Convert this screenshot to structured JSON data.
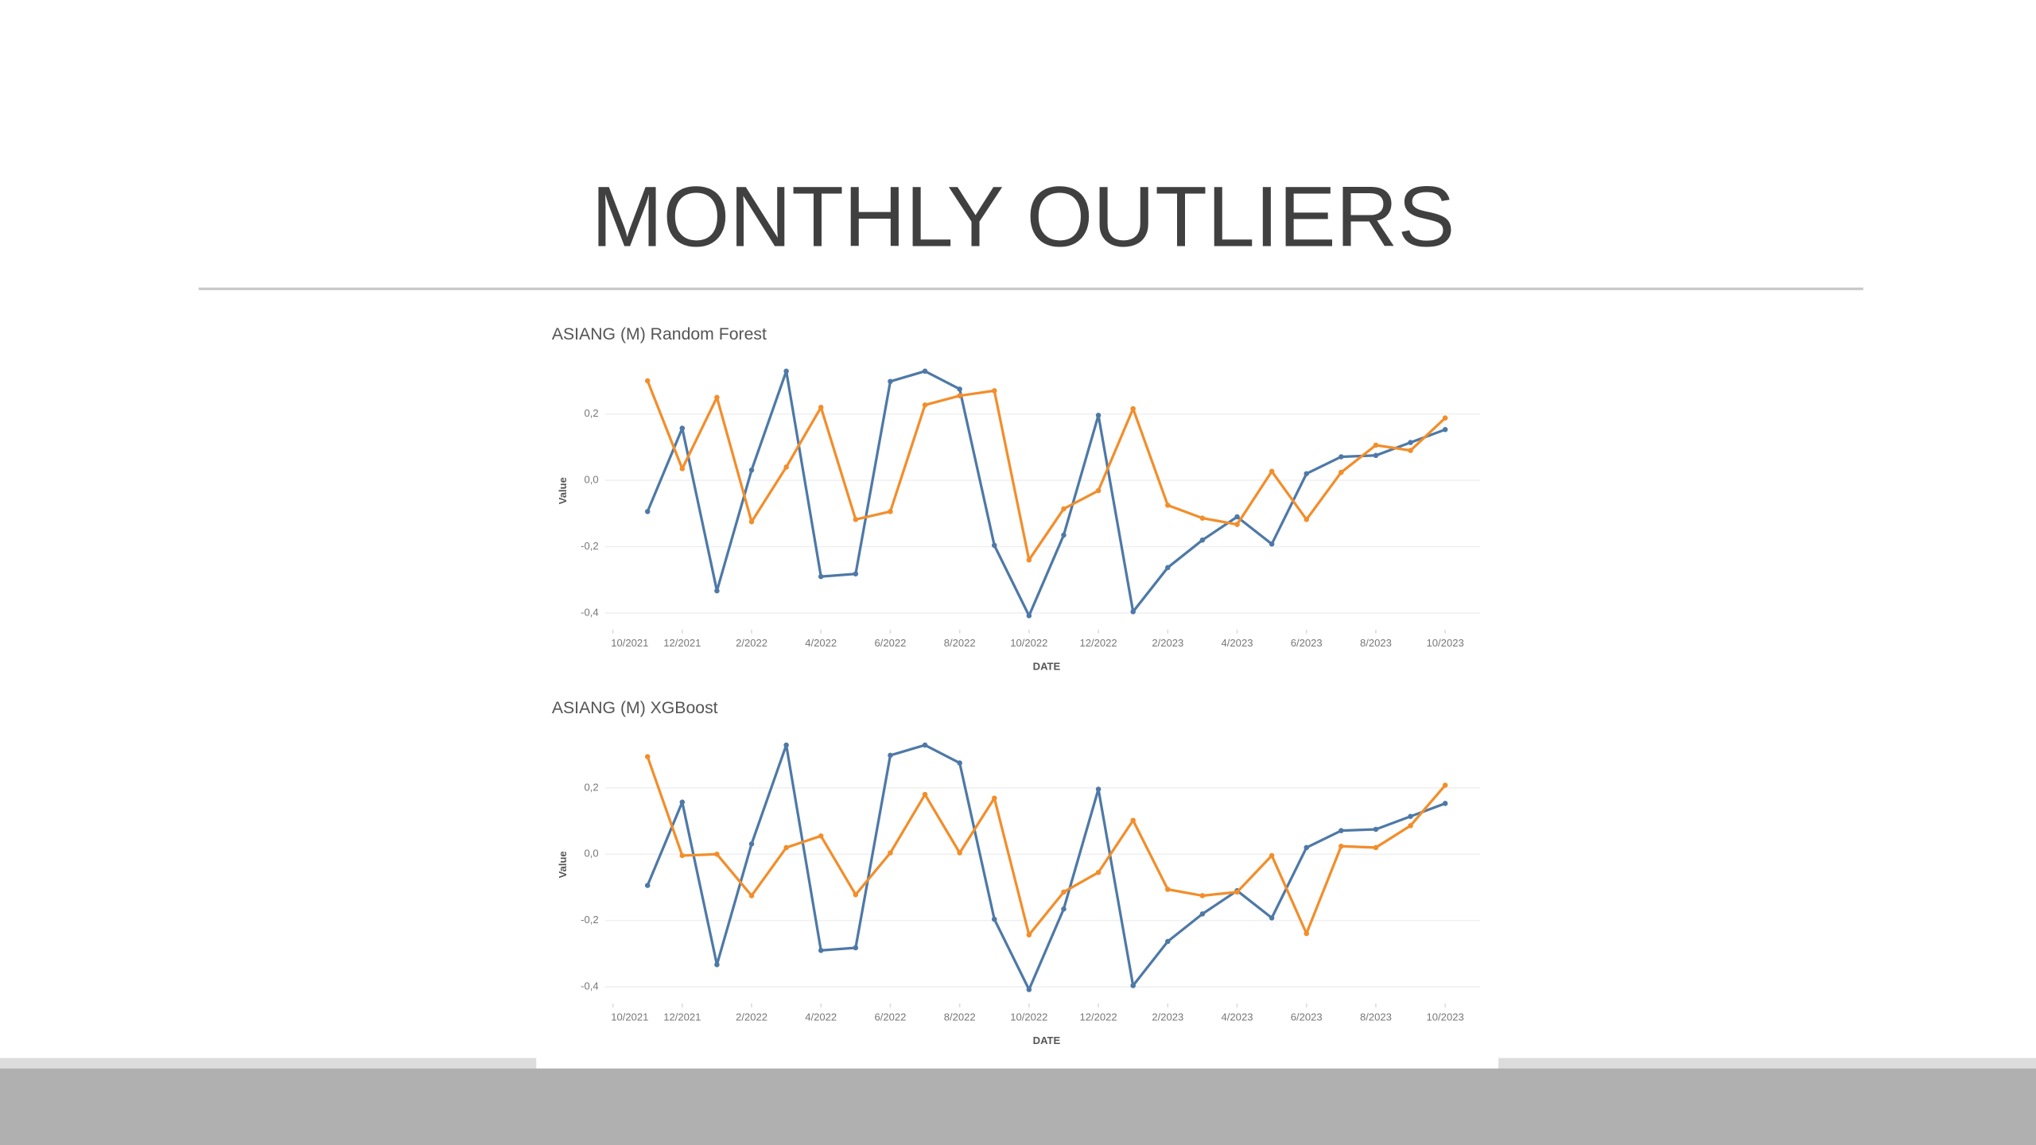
{
  "slide_title": "MONTHLY OUTLIERS",
  "chart_data": [
    {
      "type": "line",
      "title": "ASIANG (M) Random Forest",
      "x_label": "DATE",
      "y_label": "Value",
      "x": [
        "11/2021",
        "12/2021",
        "1/2022",
        "2/2022",
        "3/2022",
        "4/2022",
        "5/2022",
        "6/2022",
        "7/2022",
        "8/2022",
        "9/2022",
        "10/2022",
        "11/2022",
        "12/2022",
        "1/2023",
        "2/2023",
        "3/2023",
        "4/2023",
        "5/2023",
        "6/2023",
        "7/2023",
        "8/2023",
        "9/2023",
        "10/2023"
      ],
      "xlim": [
        "10/2021",
        "10/2023"
      ],
      "xticks": [
        "10/2021",
        "12/2021",
        "2/2022",
        "4/2022",
        "6/2022",
        "8/2022",
        "10/2022",
        "12/2022",
        "2/2023",
        "4/2023",
        "6/2023",
        "8/2023",
        "10/2023"
      ],
      "ylim": [
        -0.45,
        0.36
      ],
      "yticks": [
        {
          "value": -0.4,
          "label": "-0,4"
        },
        {
          "value": -0.2,
          "label": "-0,2"
        },
        {
          "value": 0,
          "label": "0,0"
        },
        {
          "value": 0.2,
          "label": "0,2"
        }
      ],
      "grid": true,
      "series": [
        {
          "color": "#4e79a7",
          "values": [
            -0.094,
            0.157,
            -0.333,
            0.031,
            0.329,
            -0.29,
            -0.282,
            0.298,
            0.329,
            0.275,
            -0.196,
            -0.408,
            -0.165,
            0.196,
            -0.396,
            -0.263,
            -0.18,
            -0.11,
            -0.192,
            0.02,
            0.071,
            0.075,
            0.114,
            0.153
          ]
        },
        {
          "color": "#f28e2b",
          "values": [
            0.3,
            0.035,
            0.25,
            -0.125,
            0.04,
            0.22,
            -0.118,
            -0.094,
            0.227,
            0.255,
            0.27,
            -0.24,
            -0.086,
            -0.031,
            0.216,
            -0.075,
            -0.114,
            -0.133,
            0.027,
            -0.118,
            0.024,
            0.106,
            0.09,
            0.188
          ]
        }
      ]
    },
    {
      "type": "line",
      "title": "ASIANG (M) XGBoost",
      "x_label": "DATE",
      "y_label": "Value",
      "x": [
        "11/2021",
        "12/2021",
        "1/2022",
        "2/2022",
        "3/2022",
        "4/2022",
        "5/2022",
        "6/2022",
        "7/2022",
        "8/2022",
        "9/2022",
        "10/2022",
        "11/2022",
        "12/2022",
        "1/2023",
        "2/2023",
        "3/2023",
        "4/2023",
        "5/2023",
        "6/2023",
        "7/2023",
        "8/2023",
        "9/2023",
        "10/2023"
      ],
      "xlim": [
        "10/2021",
        "10/2023"
      ],
      "xticks": [
        "10/2021",
        "12/2021",
        "2/2022",
        "4/2022",
        "6/2022",
        "8/2022",
        "10/2022",
        "12/2022",
        "2/2023",
        "4/2023",
        "6/2023",
        "8/2023",
        "10/2023"
      ],
      "ylim": [
        -0.45,
        0.36
      ],
      "yticks": [
        {
          "value": -0.4,
          "label": "-0,4"
        },
        {
          "value": -0.2,
          "label": "-0,2"
        },
        {
          "value": 0,
          "label": "0,0"
        },
        {
          "value": 0.2,
          "label": "0,2"
        }
      ],
      "grid": true,
      "series": [
        {
          "color": "#4e79a7",
          "values": [
            -0.094,
            0.157,
            -0.333,
            0.031,
            0.329,
            -0.29,
            -0.282,
            0.298,
            0.329,
            0.275,
            -0.196,
            -0.408,
            -0.165,
            0.196,
            -0.396,
            -0.263,
            -0.18,
            -0.11,
            -0.192,
            0.02,
            0.071,
            0.075,
            0.114,
            0.153
          ]
        },
        {
          "color": "#f28e2b",
          "values": [
            0.294,
            -0.004,
            0,
            -0.125,
            0.02,
            0.055,
            -0.122,
            0.004,
            0.18,
            0.004,
            0.169,
            -0.243,
            -0.114,
            -0.055,
            0.102,
            -0.106,
            -0.125,
            -0.114,
            -0.004,
            -0.239,
            0.024,
            0.02,
            0.086,
            0.208
          ]
        }
      ]
    }
  ]
}
